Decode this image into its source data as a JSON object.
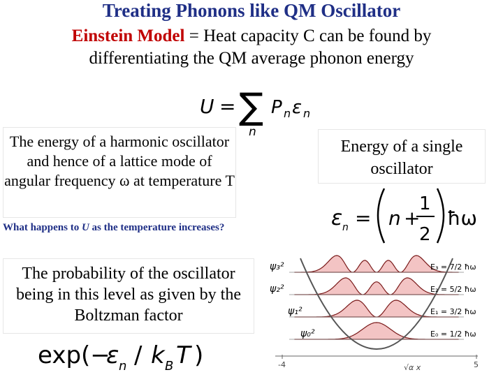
{
  "title": "Treating Phonons like QM Oscillator",
  "subtitle": {
    "model_name": "Einstein Model",
    "equals": " = ",
    "text_line1": "Heat capacity C can be found by",
    "text_line2": "differentiating the QM average phonon energy"
  },
  "equations": {
    "average_energy": {
      "lhs": "U",
      "eq": "=",
      "sum": "∑",
      "index": "n",
      "term_p": "P",
      "term_e": "ε"
    },
    "level_energy": {
      "lhs": "ε",
      "sub": "n",
      "eq": "=",
      "n": "n",
      "plus": "+",
      "num": "1",
      "den": "2",
      "hbar": "ħω"
    },
    "boltzmann": "exp(−ε_n / k_B T)"
  },
  "boxes": {
    "energy_description": "The energy of a harmonic oscillator and hence of a lattice mode of angular frequency ω at temperature T",
    "single_oscillator": "Energy of a single oscillator",
    "probability_description": "The probability of the oscillator being in this level as given by the Boltzman factor"
  },
  "question": {
    "prefix": "What happens to ",
    "variable": "U",
    "suffix": " as the temperature increases?"
  },
  "diagram": {
    "psi_labels": [
      "ψ₃²",
      "ψ₂²",
      "ψ₁²",
      "ψ₀²"
    ],
    "energy_labels": [
      "E₃ = 7/2 ħω",
      "E₂ = 5/2 ħω",
      "E₁ = 3/2 ħω",
      "E₀ = 1/2 ħω"
    ],
    "axis": {
      "left": "-4",
      "right": "5",
      "var": "√α x"
    },
    "fill_color": "#f3c4c4",
    "curve_color": "#7a1a1a"
  },
  "colors": {
    "title": "#1f2f86",
    "emphasis": "#c00000"
  }
}
